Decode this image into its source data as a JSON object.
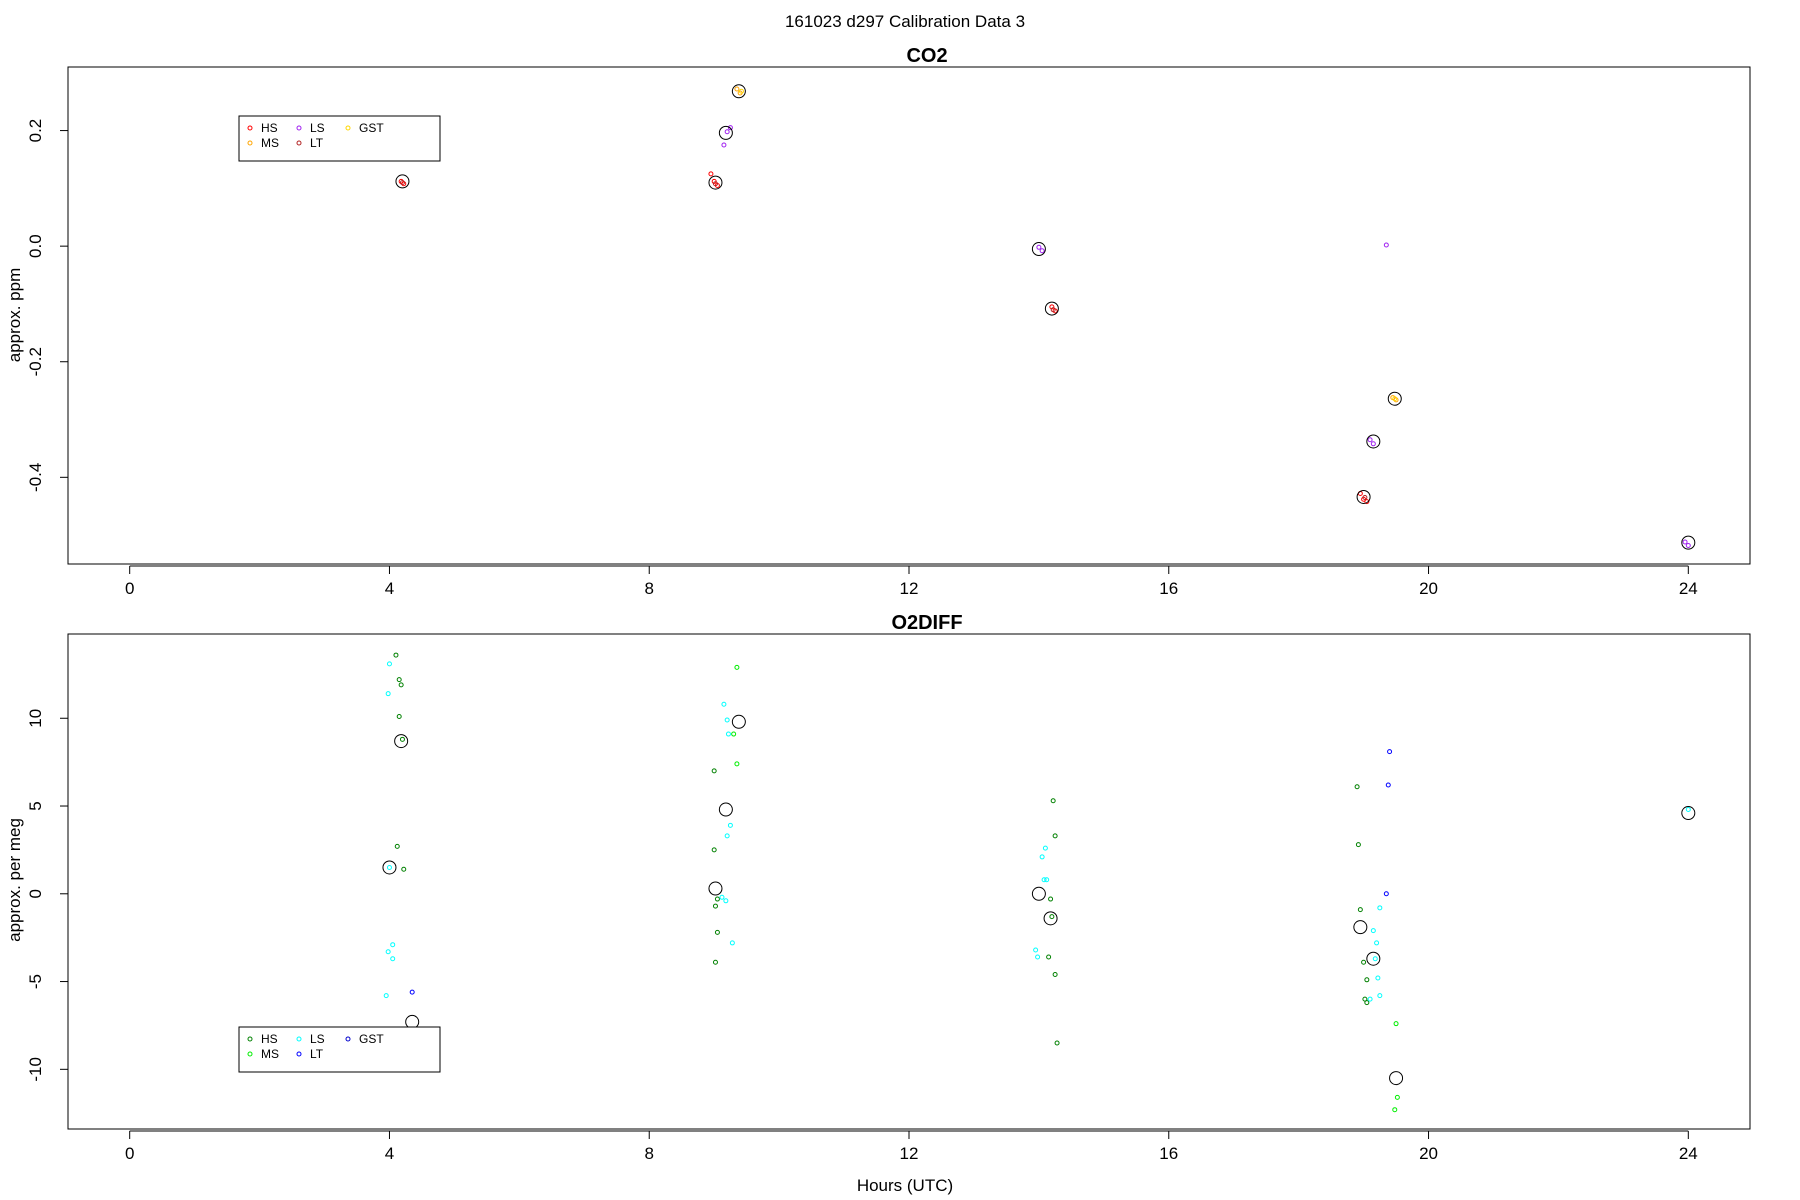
{
  "page_title": "161023   d297   Calibration Data 3",
  "x_axis_label": "Hours (UTC)",
  "chart_data": [
    {
      "type": "scatter",
      "title": "CO2",
      "xlabel": "",
      "ylabel": "approx. ppm",
      "xlim": [
        -0.95,
        24.95
      ],
      "ylim": [
        -0.55,
        0.31
      ],
      "xticks": [
        0,
        4,
        8,
        12,
        16,
        20,
        24
      ],
      "yticks": [
        -0.4,
        -0.2,
        0.0,
        0.2
      ],
      "ytick_labels": [
        "-0.4",
        "-0.2",
        "0.0",
        "0.2"
      ],
      "legend": {
        "placement": "top-left",
        "ncol": 3,
        "entries": [
          "HS",
          "MS",
          "LS",
          "LT",
          "GST"
        ]
      },
      "series": [
        {
          "name": "HS",
          "color": "#ff0000",
          "points": [
            [
              4.18,
              0.112
            ],
            [
              4.22,
              0.108
            ],
            [
              8.95,
              0.125
            ],
            [
              9.0,
              0.112
            ],
            [
              9.05,
              0.105
            ],
            [
              14.2,
              -0.105
            ],
            [
              14.25,
              -0.112
            ],
            [
              18.95,
              -0.428
            ],
            [
              19.0,
              -0.438
            ],
            [
              19.05,
              -0.442
            ]
          ]
        },
        {
          "name": "MS",
          "color": "#ffa500",
          "points": [
            [
              9.35,
              0.272
            ],
            [
              9.4,
              0.265
            ],
            [
              19.45,
              -0.262
            ],
            [
              19.5,
              -0.266
            ]
          ]
        },
        {
          "name": "LS",
          "color": "#a020f0",
          "points": [
            [
              9.15,
              0.175
            ],
            [
              9.2,
              0.198
            ],
            [
              9.25,
              0.205
            ],
            [
              14.0,
              -0.002
            ],
            [
              14.05,
              -0.008
            ],
            [
              19.1,
              -0.335
            ],
            [
              19.15,
              -0.342
            ],
            [
              19.35,
              0.002
            ],
            [
              23.95,
              -0.512
            ],
            [
              24.0,
              -0.518
            ]
          ]
        },
        {
          "name": "LT",
          "color": "#b22222",
          "points": [
            [
              4.2,
              0.11
            ],
            [
              9.02,
              0.108
            ],
            [
              14.22,
              -0.11
            ],
            [
              19.02,
              -0.435
            ]
          ]
        },
        {
          "name": "GST",
          "color": "#ffd700",
          "points": [
            [
              9.42,
              0.268
            ],
            [
              19.48,
              -0.264
            ]
          ]
        }
      ],
      "means": [
        [
          4.2,
          0.112
        ],
        [
          9.02,
          0.11
        ],
        [
          9.38,
          0.268
        ],
        [
          9.18,
          0.196
        ],
        [
          14.0,
          -0.005
        ],
        [
          14.2,
          -0.108
        ],
        [
          19.0,
          -0.434
        ],
        [
          19.48,
          -0.264
        ],
        [
          19.15,
          -0.338
        ],
        [
          24.0,
          -0.513
        ]
      ]
    },
    {
      "type": "scatter",
      "title": "O2DIFF",
      "xlabel": "Hours (UTC)",
      "ylabel": "approx. per meg",
      "xlim": [
        -0.95,
        24.95
      ],
      "ylim": [
        -13.4,
        14.8
      ],
      "xticks": [
        0,
        4,
        8,
        12,
        16,
        20,
        24
      ],
      "yticks": [
        -10,
        -5,
        0,
        5,
        10
      ],
      "ytick_labels": [
        "-10",
        "-5",
        "0",
        "5",
        "10"
      ],
      "legend": {
        "placement": "bottom-left",
        "ncol": 3,
        "entries": [
          "HS",
          "MS",
          "LS",
          "LT",
          "GST"
        ]
      },
      "series": [
        {
          "name": "HS",
          "color": "#008000",
          "points": [
            [
              4.1,
              13.6
            ],
            [
              4.15,
              12.2
            ],
            [
              4.18,
              11.9
            ],
            [
              4.15,
              10.1
            ],
            [
              4.2,
              8.8
            ],
            [
              4.12,
              2.7
            ],
            [
              4.22,
              1.4
            ],
            [
              9.0,
              7.0
            ],
            [
              9.0,
              2.5
            ],
            [
              9.02,
              -0.7
            ],
            [
              9.05,
              -0.3
            ],
            [
              9.05,
              -2.2
            ],
            [
              9.02,
              -3.9
            ],
            [
              14.22,
              5.3
            ],
            [
              14.25,
              3.3
            ],
            [
              14.18,
              -0.3
            ],
            [
              14.2,
              -1.3
            ],
            [
              14.15,
              -3.6
            ],
            [
              14.25,
              -4.6
            ],
            [
              14.28,
              -8.5
            ],
            [
              18.9,
              6.1
            ],
            [
              18.92,
              2.8
            ],
            [
              18.95,
              -0.9
            ],
            [
              19.0,
              -3.9
            ],
            [
              19.05,
              -4.9
            ],
            [
              19.02,
              -6.0
            ],
            [
              19.05,
              -6.2
            ]
          ]
        },
        {
          "name": "MS",
          "color": "#00ee00",
          "points": [
            [
              9.35,
              12.9
            ],
            [
              9.3,
              9.1
            ],
            [
              9.35,
              7.4
            ],
            [
              19.5,
              -7.4
            ],
            [
              19.52,
              -11.6
            ],
            [
              19.48,
              -12.3
            ]
          ]
        },
        {
          "name": "LS",
          "color": "#00ffff",
          "points": [
            [
              4.0,
              13.1
            ],
            [
              3.98,
              11.4
            ],
            [
              4.05,
              -2.9
            ],
            [
              3.98,
              -3.3
            ],
            [
              4.05,
              -3.7
            ],
            [
              3.95,
              -5.8
            ],
            [
              4.0,
              1.5
            ],
            [
              9.15,
              10.8
            ],
            [
              9.2,
              9.9
            ],
            [
              9.22,
              9.1
            ],
            [
              9.25,
              3.9
            ],
            [
              9.2,
              3.3
            ],
            [
              9.12,
              -0.2
            ],
            [
              9.18,
              -0.4
            ],
            [
              9.28,
              -2.8
            ],
            [
              14.1,
              2.6
            ],
            [
              14.05,
              2.1
            ],
            [
              14.08,
              0.8
            ],
            [
              14.12,
              0.8
            ],
            [
              13.95,
              -3.2
            ],
            [
              13.98,
              -3.6
            ],
            [
              19.15,
              -2.1
            ],
            [
              19.2,
              -2.8
            ],
            [
              19.25,
              -0.8
            ],
            [
              19.18,
              -3.7
            ],
            [
              19.22,
              -4.8
            ],
            [
              19.25,
              -5.8
            ],
            [
              19.1,
              -6.0
            ],
            [
              24.0,
              4.8
            ]
          ]
        },
        {
          "name": "LT",
          "color": "#0000ff",
          "points": [
            [
              4.35,
              -5.6
            ],
            [
              19.4,
              8.1
            ],
            [
              19.38,
              6.2
            ],
            [
              19.35,
              0.0
            ]
          ]
        },
        {
          "name": "GST",
          "color": "#0000cd",
          "points": []
        }
      ],
      "means": [
        [
          4.18,
          8.7
        ],
        [
          4.0,
          1.5
        ],
        [
          4.35,
          -7.3
        ],
        [
          9.38,
          9.8
        ],
        [
          9.18,
          4.8
        ],
        [
          9.02,
          0.3
        ],
        [
          14.0,
          0.0
        ],
        [
          14.18,
          -1.4
        ],
        [
          18.95,
          -1.9
        ],
        [
          19.15,
          -3.7
        ],
        [
          19.5,
          -10.5
        ],
        [
          24.0,
          4.6
        ]
      ]
    }
  ]
}
